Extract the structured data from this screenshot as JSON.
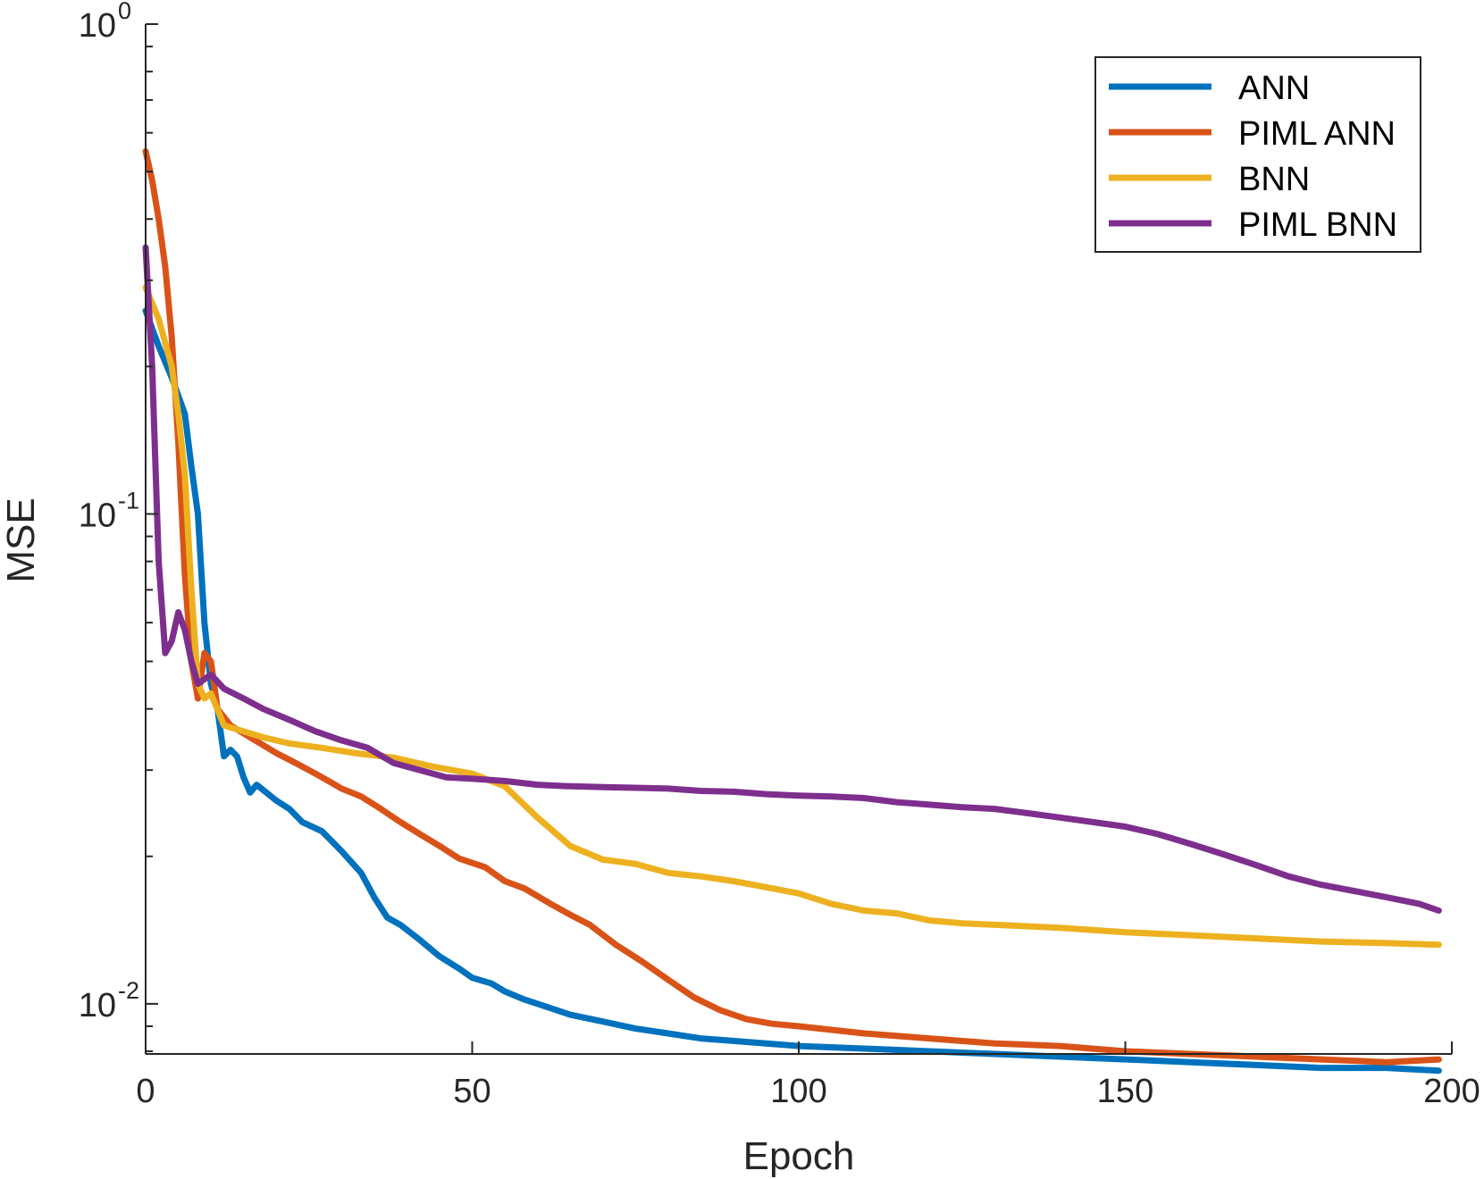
{
  "chart_data": {
    "type": "line",
    "title": "",
    "xlabel": "Epoch",
    "ylabel": "MSE",
    "xlim": [
      0,
      200
    ],
    "ylim": [
      0.0079,
      1
    ],
    "yscale": "log",
    "grid": false,
    "legend_position": "top-right",
    "x_ticks": [
      {
        "value": 0,
        "label": "0"
      },
      {
        "value": 50,
        "label": "50"
      },
      {
        "value": 100,
        "label": "100"
      },
      {
        "value": 150,
        "label": "150"
      },
      {
        "value": 200,
        "label": "200"
      }
    ],
    "y_ticks": [
      {
        "value": 0.01,
        "base": "10",
        "exp": "-2"
      },
      {
        "value": 0.1,
        "base": "10",
        "exp": "-1"
      },
      {
        "value": 1,
        "base": "10",
        "exp": "0"
      }
    ],
    "series": [
      {
        "name": "ANN",
        "color": "#0072BD",
        "points": [
          [
            0,
            0.26
          ],
          [
            2,
            0.22
          ],
          [
            4,
            0.19
          ],
          [
            6,
            0.16
          ],
          [
            7,
            0.125
          ],
          [
            8,
            0.1
          ],
          [
            9,
            0.06
          ],
          [
            10,
            0.045
          ],
          [
            11,
            0.04
          ],
          [
            12,
            0.032
          ],
          [
            13,
            0.033
          ],
          [
            14,
            0.032
          ],
          [
            15,
            0.029
          ],
          [
            16,
            0.027
          ],
          [
            17,
            0.028
          ],
          [
            20,
            0.026
          ],
          [
            22,
            0.025
          ],
          [
            24,
            0.0235
          ],
          [
            27,
            0.0225
          ],
          [
            30,
            0.0205
          ],
          [
            33,
            0.0185
          ],
          [
            35,
            0.0165
          ],
          [
            37,
            0.015
          ],
          [
            39,
            0.0145
          ],
          [
            42,
            0.0135
          ],
          [
            45,
            0.0125
          ],
          [
            48,
            0.0118
          ],
          [
            50,
            0.0113
          ],
          [
            53,
            0.011
          ],
          [
            55,
            0.0106
          ],
          [
            58,
            0.0102
          ],
          [
            62,
            0.0098
          ],
          [
            65,
            0.0095
          ],
          [
            70,
            0.0092
          ],
          [
            75,
            0.0089
          ],
          [
            80,
            0.0087
          ],
          [
            85,
            0.0085
          ],
          [
            90,
            0.0084
          ],
          [
            95,
            0.0083
          ],
          [
            100,
            0.0082
          ],
          [
            110,
            0.0081
          ],
          [
            120,
            0.008
          ],
          [
            130,
            0.0079
          ],
          [
            140,
            0.0078
          ],
          [
            150,
            0.0077
          ],
          [
            160,
            0.0076
          ],
          [
            170,
            0.0075
          ],
          [
            180,
            0.0074
          ],
          [
            190,
            0.0074
          ],
          [
            198,
            0.0073
          ]
        ]
      },
      {
        "name": "PIML ANN",
        "color": "#D95319",
        "points": [
          [
            0,
            0.55
          ],
          [
            1,
            0.48
          ],
          [
            2,
            0.4
          ],
          [
            3,
            0.32
          ],
          [
            4,
            0.23
          ],
          [
            5,
            0.14
          ],
          [
            6,
            0.075
          ],
          [
            7,
            0.05
          ],
          [
            8,
            0.042
          ],
          [
            9,
            0.052
          ],
          [
            10,
            0.05
          ],
          [
            11,
            0.04
          ],
          [
            13,
            0.037
          ],
          [
            16,
            0.035
          ],
          [
            20,
            0.0325
          ],
          [
            23,
            0.031
          ],
          [
            26,
            0.0295
          ],
          [
            28,
            0.0285
          ],
          [
            30,
            0.0275
          ],
          [
            33,
            0.0265
          ],
          [
            36,
            0.025
          ],
          [
            39,
            0.0235
          ],
          [
            42,
            0.0222
          ],
          [
            45,
            0.021
          ],
          [
            48,
            0.0198
          ],
          [
            52,
            0.019
          ],
          [
            55,
            0.0178
          ],
          [
            58,
            0.0172
          ],
          [
            62,
            0.016
          ],
          [
            65,
            0.0152
          ],
          [
            68,
            0.0145
          ],
          [
            72,
            0.0132
          ],
          [
            76,
            0.0122
          ],
          [
            80,
            0.0112
          ],
          [
            84,
            0.0103
          ],
          [
            88,
            0.0097
          ],
          [
            92,
            0.0093
          ],
          [
            96,
            0.0091
          ],
          [
            100,
            0.009
          ],
          [
            110,
            0.0087
          ],
          [
            120,
            0.0085
          ],
          [
            130,
            0.0083
          ],
          [
            140,
            0.0082
          ],
          [
            150,
            0.008
          ],
          [
            160,
            0.0079
          ],
          [
            170,
            0.0078
          ],
          [
            180,
            0.0077
          ],
          [
            190,
            0.0076
          ],
          [
            198,
            0.0077
          ]
        ]
      },
      {
        "name": "BNN",
        "color": "#EDB120",
        "points": [
          [
            0,
            0.29
          ],
          [
            2,
            0.25
          ],
          [
            4,
            0.2
          ],
          [
            5,
            0.16
          ],
          [
            6,
            0.12
          ],
          [
            7,
            0.07
          ],
          [
            8,
            0.045
          ],
          [
            9,
            0.042
          ],
          [
            10,
            0.043
          ],
          [
            12,
            0.037
          ],
          [
            15,
            0.036
          ],
          [
            18,
            0.035
          ],
          [
            22,
            0.034
          ],
          [
            27,
            0.0333
          ],
          [
            32,
            0.0325
          ],
          [
            38,
            0.0318
          ],
          [
            44,
            0.0305
          ],
          [
            50,
            0.0295
          ],
          [
            55,
            0.0278
          ],
          [
            60,
            0.024
          ],
          [
            65,
            0.021
          ],
          [
            70,
            0.0197
          ],
          [
            75,
            0.0193
          ],
          [
            80,
            0.0185
          ],
          [
            85,
            0.0182
          ],
          [
            90,
            0.0178
          ],
          [
            95,
            0.0173
          ],
          [
            100,
            0.0168
          ],
          [
            105,
            0.016
          ],
          [
            110,
            0.0155
          ],
          [
            115,
            0.0153
          ],
          [
            120,
            0.0148
          ],
          [
            125,
            0.0146
          ],
          [
            130,
            0.0145
          ],
          [
            140,
            0.0143
          ],
          [
            150,
            0.014
          ],
          [
            160,
            0.0138
          ],
          [
            170,
            0.0136
          ],
          [
            180,
            0.0134
          ],
          [
            190,
            0.0133
          ],
          [
            198,
            0.0132
          ]
        ]
      },
      {
        "name": "PIML BNN",
        "color": "#7E2F8E",
        "points": [
          [
            0,
            0.35
          ],
          [
            1,
            0.2
          ],
          [
            2,
            0.08
          ],
          [
            3,
            0.052
          ],
          [
            4,
            0.055
          ],
          [
            5,
            0.063
          ],
          [
            6,
            0.058
          ],
          [
            7,
            0.05
          ],
          [
            8,
            0.045
          ],
          [
            9,
            0.046
          ],
          [
            10,
            0.047
          ],
          [
            12,
            0.044
          ],
          [
            15,
            0.042
          ],
          [
            18,
            0.04
          ],
          [
            22,
            0.038
          ],
          [
            26,
            0.036
          ],
          [
            30,
            0.0345
          ],
          [
            34,
            0.0333
          ],
          [
            38,
            0.031
          ],
          [
            42,
            0.03
          ],
          [
            46,
            0.029
          ],
          [
            50,
            0.0288
          ],
          [
            55,
            0.0285
          ],
          [
            60,
            0.028
          ],
          [
            65,
            0.0278
          ],
          [
            70,
            0.0277
          ],
          [
            75,
            0.0276
          ],
          [
            80,
            0.0275
          ],
          [
            85,
            0.0272
          ],
          [
            90,
            0.0271
          ],
          [
            95,
            0.0268
          ],
          [
            100,
            0.0266
          ],
          [
            105,
            0.0265
          ],
          [
            110,
            0.0263
          ],
          [
            115,
            0.0258
          ],
          [
            120,
            0.0255
          ],
          [
            125,
            0.0252
          ],
          [
            130,
            0.025
          ],
          [
            135,
            0.0245
          ],
          [
            140,
            0.024
          ],
          [
            145,
            0.0235
          ],
          [
            150,
            0.023
          ],
          [
            155,
            0.0222
          ],
          [
            160,
            0.0212
          ],
          [
            165,
            0.0202
          ],
          [
            170,
            0.0192
          ],
          [
            175,
            0.0182
          ],
          [
            180,
            0.0175
          ],
          [
            185,
            0.017
          ],
          [
            190,
            0.0165
          ],
          [
            195,
            0.016
          ],
          [
            198,
            0.0155
          ]
        ]
      }
    ]
  }
}
